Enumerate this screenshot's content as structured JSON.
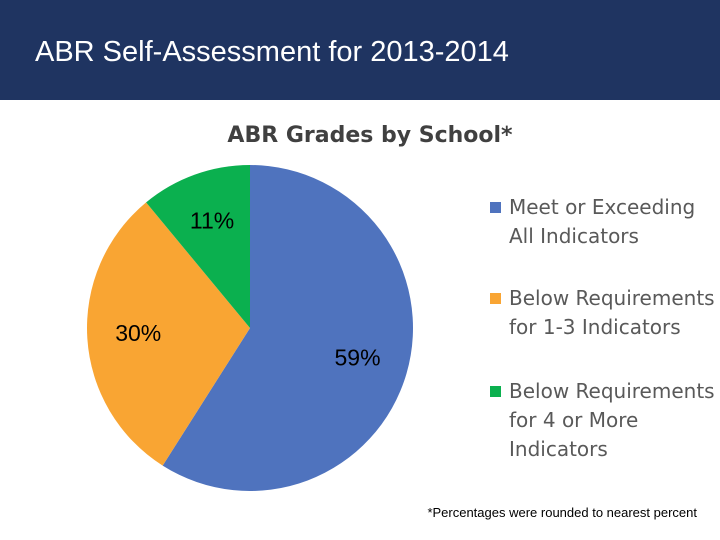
{
  "slide_title": "ABR Self-Assessment for 2013-2014",
  "footnote": "*Percentages were rounded to nearest percent",
  "chart_data": {
    "type": "pie",
    "title": "ABR Grades by School*",
    "categories": [
      "Meet or Exceeding All Indicators",
      "Below Requirements for 1-3 Indicators",
      "Below Requirements for 4 or More Indicators"
    ],
    "values": [
      59,
      30,
      11
    ],
    "value_labels": [
      "59%",
      "30%",
      "11%"
    ],
    "colors": [
      "#4f73be",
      "#f9a533",
      "#0bb04f"
    ],
    "legend": "right"
  }
}
